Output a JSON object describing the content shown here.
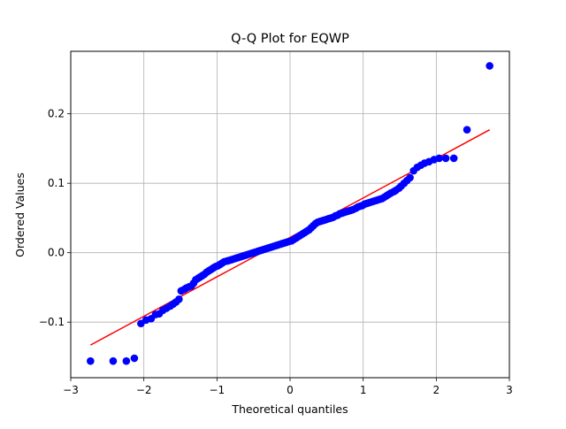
{
  "chart_data": {
    "type": "scatter",
    "title": "Q-Q Plot for EQWP",
    "xlabel": "Theoretical quantiles",
    "ylabel": "Ordered Values",
    "xlim": [
      -3.0,
      3.0
    ],
    "ylim": [
      -0.18,
      0.29
    ],
    "xticks": [
      -3,
      -2,
      -1,
      0,
      1,
      2,
      3
    ],
    "xtick_labels": [
      "−3",
      "−2",
      "−1",
      "0",
      "1",
      "2",
      "3"
    ],
    "yticks": [
      -0.1,
      0.0,
      0.1,
      0.2
    ],
    "ytick_labels": [
      "−0.1",
      "0.0",
      "0.1",
      "0.2"
    ],
    "grid": true,
    "colors": {
      "points": "#0000ff",
      "fit_line": "#ff0000"
    },
    "series": [
      {
        "kind": "points",
        "points": [
          [
            -2.73,
            -0.156
          ],
          [
            -2.42,
            -0.156
          ],
          [
            -2.24,
            -0.156
          ],
          [
            -2.13,
            -0.152
          ],
          [
            -2.04,
            -0.102
          ],
          [
            -1.97,
            -0.097
          ],
          [
            -1.9,
            -0.095
          ],
          [
            -1.84,
            -0.089
          ],
          [
            -1.79,
            -0.088
          ],
          [
            -1.74,
            -0.083
          ],
          [
            -1.69,
            -0.08
          ],
          [
            -1.64,
            -0.077
          ],
          [
            -1.6,
            -0.074
          ],
          [
            -1.56,
            -0.071
          ],
          [
            -1.52,
            -0.067
          ],
          [
            -1.49,
            -0.055
          ],
          [
            -1.45,
            -0.053
          ],
          [
            -1.42,
            -0.051
          ],
          [
            -1.38,
            -0.049
          ],
          [
            -1.35,
            -0.048
          ],
          [
            -1.32,
            -0.044
          ],
          [
            -1.29,
            -0.039
          ],
          [
            -1.26,
            -0.037
          ],
          [
            -1.23,
            -0.035
          ],
          [
            -1.2,
            -0.033
          ],
          [
            -1.17,
            -0.031
          ],
          [
            -1.14,
            -0.028
          ],
          [
            -1.11,
            -0.026
          ],
          [
            -1.08,
            -0.024
          ],
          [
            -1.05,
            -0.022
          ],
          [
            -1.02,
            -0.02
          ],
          [
            -0.99,
            -0.019
          ],
          [
            -0.96,
            -0.017
          ],
          [
            -0.93,
            -0.015
          ],
          [
            -0.9,
            -0.013
          ],
          [
            -0.86,
            -0.012
          ],
          [
            -0.83,
            -0.011
          ],
          [
            -0.8,
            -0.01
          ],
          [
            -0.77,
            -0.009
          ],
          [
            -0.74,
            -0.008
          ],
          [
            -0.71,
            -0.007
          ],
          [
            -0.68,
            -0.006
          ],
          [
            -0.65,
            -0.005
          ],
          [
            -0.62,
            -0.004
          ],
          [
            -0.59,
            -0.003
          ],
          [
            -0.56,
            -0.002
          ],
          [
            -0.53,
            -0.001
          ],
          [
            -0.5,
            0.0
          ],
          [
            -0.47,
            0.001
          ],
          [
            -0.44,
            0.002
          ],
          [
            -0.41,
            0.003
          ],
          [
            -0.38,
            0.004
          ],
          [
            -0.35,
            0.005
          ],
          [
            -0.32,
            0.006
          ],
          [
            -0.29,
            0.007
          ],
          [
            -0.26,
            0.008
          ],
          [
            -0.23,
            0.009
          ],
          [
            -0.2,
            0.01
          ],
          [
            -0.17,
            0.011
          ],
          [
            -0.14,
            0.012
          ],
          [
            -0.11,
            0.013
          ],
          [
            -0.08,
            0.014
          ],
          [
            -0.05,
            0.015
          ],
          [
            -0.02,
            0.016
          ],
          [
            0.02,
            0.017
          ],
          [
            0.05,
            0.019
          ],
          [
            0.08,
            0.021
          ],
          [
            0.11,
            0.023
          ],
          [
            0.14,
            0.025
          ],
          [
            0.17,
            0.027
          ],
          [
            0.2,
            0.029
          ],
          [
            0.23,
            0.031
          ],
          [
            0.26,
            0.033
          ],
          [
            0.29,
            0.036
          ],
          [
            0.32,
            0.039
          ],
          [
            0.35,
            0.042
          ],
          [
            0.38,
            0.044
          ],
          [
            0.41,
            0.045
          ],
          [
            0.44,
            0.046
          ],
          [
            0.47,
            0.047
          ],
          [
            0.5,
            0.048
          ],
          [
            0.53,
            0.049
          ],
          [
            0.56,
            0.05
          ],
          [
            0.59,
            0.051
          ],
          [
            0.62,
            0.053
          ],
          [
            0.65,
            0.054
          ],
          [
            0.68,
            0.056
          ],
          [
            0.71,
            0.057
          ],
          [
            0.74,
            0.058
          ],
          [
            0.77,
            0.059
          ],
          [
            0.8,
            0.06
          ],
          [
            0.83,
            0.061
          ],
          [
            0.86,
            0.062
          ],
          [
            0.9,
            0.064
          ],
          [
            0.93,
            0.066
          ],
          [
            0.96,
            0.067
          ],
          [
            0.99,
            0.068
          ],
          [
            1.02,
            0.07
          ],
          [
            1.05,
            0.071
          ],
          [
            1.08,
            0.072
          ],
          [
            1.11,
            0.073
          ],
          [
            1.14,
            0.074
          ],
          [
            1.17,
            0.075
          ],
          [
            1.2,
            0.076
          ],
          [
            1.23,
            0.077
          ],
          [
            1.26,
            0.078
          ],
          [
            1.29,
            0.08
          ],
          [
            1.32,
            0.082
          ],
          [
            1.35,
            0.084
          ],
          [
            1.38,
            0.086
          ],
          [
            1.42,
            0.088
          ],
          [
            1.45,
            0.09
          ],
          [
            1.49,
            0.093
          ],
          [
            1.52,
            0.096
          ],
          [
            1.56,
            0.1
          ],
          [
            1.6,
            0.104
          ],
          [
            1.64,
            0.108
          ],
          [
            1.69,
            0.118
          ],
          [
            1.74,
            0.123
          ],
          [
            1.79,
            0.126
          ],
          [
            1.84,
            0.129
          ],
          [
            1.9,
            0.131
          ],
          [
            1.97,
            0.134
          ],
          [
            2.04,
            0.136
          ],
          [
            2.13,
            0.136
          ],
          [
            2.24,
            0.136
          ],
          [
            2.42,
            0.177
          ],
          [
            2.73,
            0.269
          ]
        ]
      },
      {
        "kind": "line",
        "x": [
          -2.73,
          2.73
        ],
        "y": [
          -0.133,
          0.177
        ]
      }
    ]
  }
}
